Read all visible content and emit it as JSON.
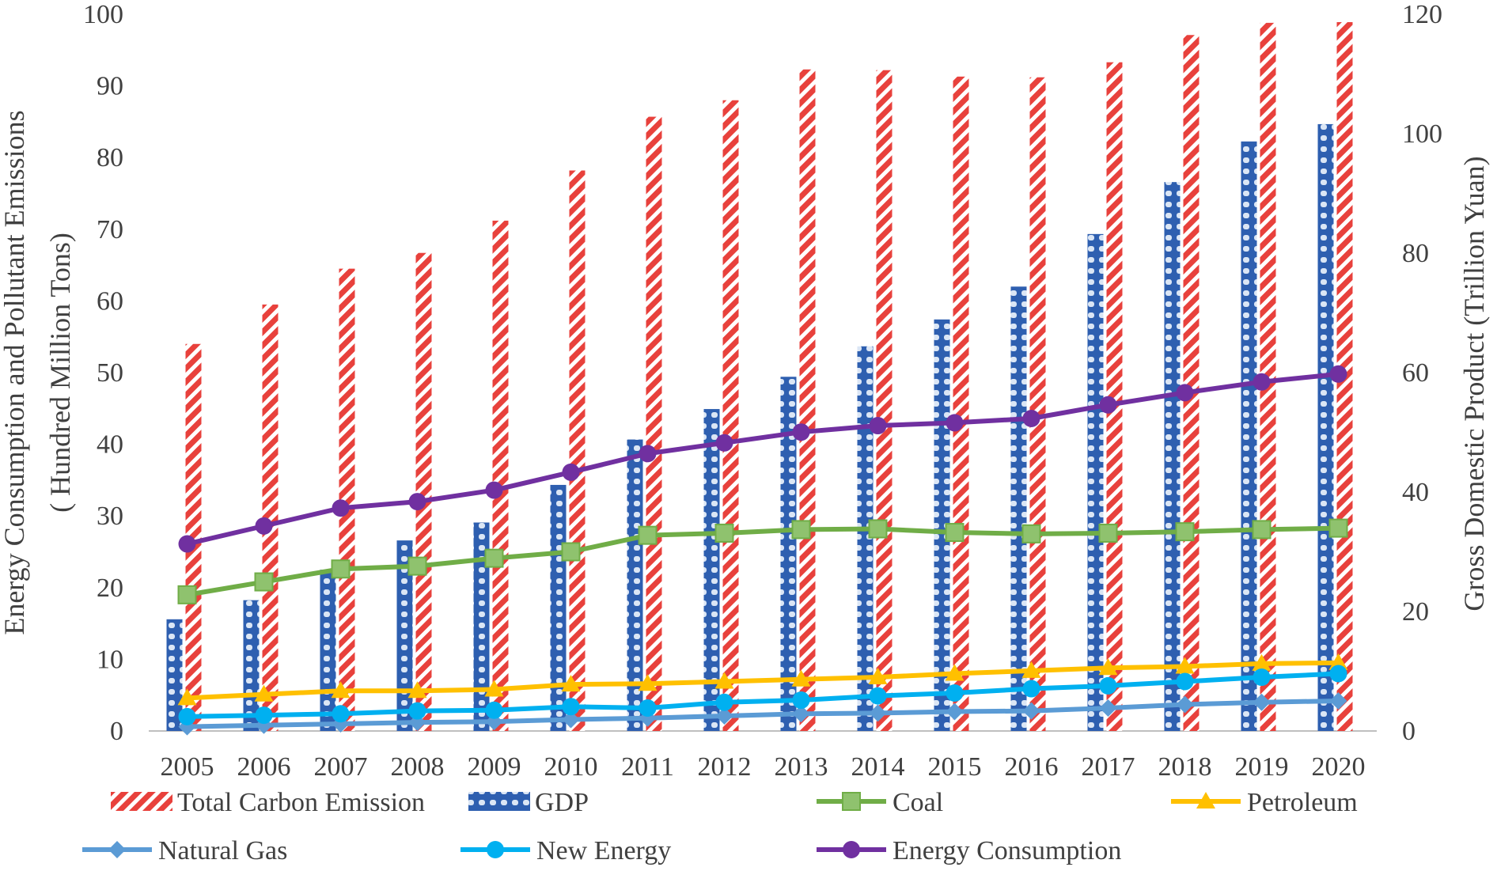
{
  "chart_data": {
    "type": "bar+line",
    "title": "",
    "categories": [
      "2005",
      "2006",
      "2007",
      "2008",
      "2009",
      "2010",
      "2011",
      "2012",
      "2013",
      "2014",
      "2015",
      "2016",
      "2017",
      "2018",
      "2019",
      "2020"
    ],
    "ylabel_left_line1": "Energy Consumption and Pollutant Emissions",
    "ylabel_left_line2": "( Hundred Million Tons)",
    "ylabel_right": "Gross Domestic Product (Trillion Yuan)",
    "ylim_left": [
      0,
      100
    ],
    "ylim_right": [
      0,
      120
    ],
    "yticks_left": [
      "0",
      "10",
      "20",
      "30",
      "40",
      "50",
      "60",
      "70",
      "80",
      "90",
      "100"
    ],
    "yticks_right": [
      "0",
      "20",
      "40",
      "60",
      "80",
      "100",
      "120"
    ],
    "series": [
      {
        "name": "Total Carbon Emission",
        "kind": "bar",
        "axis": "left",
        "color": "#e8413c",
        "values": [
          54.0,
          59.5,
          64.5,
          66.7,
          71.2,
          78.2,
          85.7,
          88.0,
          92.3,
          92.2,
          91.3,
          91.2,
          93.3,
          97.1,
          98.8,
          98.9
        ]
      },
      {
        "name": "GDP",
        "kind": "bar",
        "axis": "right",
        "color": "#2e5fb0",
        "values": [
          18.7,
          21.9,
          27.0,
          31.9,
          34.9,
          41.2,
          48.8,
          53.9,
          59.3,
          64.4,
          68.9,
          74.4,
          83.2,
          91.9,
          98.7,
          101.6
        ]
      },
      {
        "name": "Coal",
        "kind": "line",
        "axis": "left",
        "color": "#70ad47",
        "marker": "square",
        "values": [
          19.0,
          20.8,
          22.6,
          23.0,
          24.1,
          25.0,
          27.3,
          27.6,
          28.1,
          28.2,
          27.7,
          27.5,
          27.6,
          27.8,
          28.1,
          28.3
        ]
      },
      {
        "name": "Petroleum",
        "kind": "line",
        "axis": "left",
        "color": "#ffc000",
        "marker": "triangle",
        "values": [
          4.6,
          5.1,
          5.6,
          5.6,
          5.8,
          6.5,
          6.6,
          6.9,
          7.2,
          7.5,
          8.0,
          8.4,
          8.8,
          9.0,
          9.4,
          9.5
        ]
      },
      {
        "name": "Natural Gas",
        "kind": "line",
        "axis": "left",
        "color": "#5b9bd5",
        "marker": "diamond",
        "values": [
          0.6,
          0.8,
          1.0,
          1.2,
          1.3,
          1.6,
          1.8,
          2.1,
          2.4,
          2.5,
          2.7,
          2.8,
          3.2,
          3.7,
          4.0,
          4.2
        ]
      },
      {
        "name": "New Energy",
        "kind": "line",
        "axis": "left",
        "color": "#00b0f0",
        "marker": "circle",
        "values": [
          2.0,
          2.2,
          2.4,
          2.8,
          2.9,
          3.4,
          3.2,
          4.0,
          4.3,
          4.9,
          5.3,
          5.9,
          6.3,
          6.9,
          7.5,
          8.0
        ]
      },
      {
        "name": "Energy Consumption",
        "kind": "line",
        "axis": "left",
        "color": "#7030a0",
        "marker": "circle",
        "values": [
          26.1,
          28.6,
          31.1,
          32.0,
          33.6,
          36.1,
          38.7,
          40.2,
          41.7,
          42.6,
          43.0,
          43.6,
          45.5,
          47.2,
          48.7,
          49.8
        ]
      }
    ],
    "legend": {
      "placement": "bottom",
      "row1": [
        "Total Carbon Emission",
        "GDP",
        "Coal",
        "Petroleum"
      ],
      "row2": [
        "Natural Gas",
        "New Energy",
        "Energy Consumption"
      ]
    },
    "grid": false
  }
}
